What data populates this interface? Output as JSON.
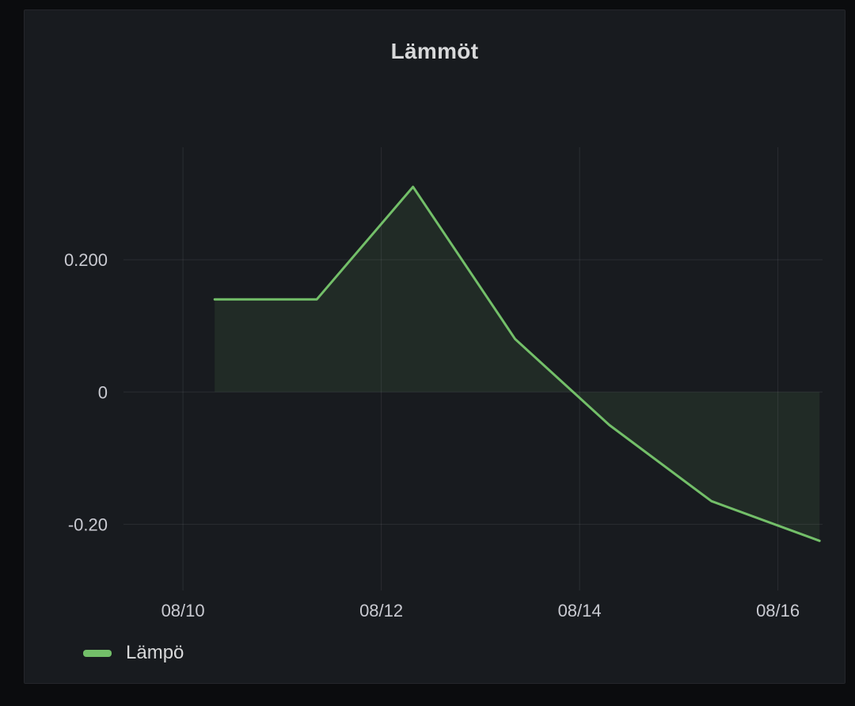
{
  "chart_data": {
    "type": "area",
    "title": "Lämmöt",
    "x_axis": {
      "min": 9.4,
      "max": 16.45,
      "ticks": [
        {
          "v": 10,
          "label": "08/10"
        },
        {
          "v": 12,
          "label": "08/12"
        },
        {
          "v": 14,
          "label": "08/14"
        },
        {
          "v": 16,
          "label": "08/16"
        }
      ]
    },
    "y_axis": {
      "min": -0.3,
      "max": 0.37,
      "ticks": [
        {
          "v": 0.2,
          "label": "0.200"
        },
        {
          "v": 0,
          "label": "0"
        },
        {
          "v": -0.2,
          "label": "-0.20"
        }
      ]
    },
    "grid": true,
    "series": [
      {
        "name": "Lämpö",
        "color": "#73BF69",
        "fill": "rgba(115,191,105,0.10)",
        "x": [
          10.32,
          11.35,
          12.32,
          13.35,
          14.3,
          15.33,
          16.42
        ],
        "y": [
          0.14,
          0.14,
          0.31,
          0.08,
          -0.05,
          -0.165,
          -0.225
        ]
      }
    ],
    "legend": {
      "position": "bottom-left",
      "items": [
        {
          "label": "Lämpö",
          "color": "#73BF69"
        }
      ]
    },
    "colors": {
      "page_bg": "#0b0c0e",
      "panel_bg": "#181b1f",
      "panel_border": "#25262b",
      "title_text": "#d8d9da",
      "tick_text": "#c9cad1",
      "grid": "rgba(204,204,220,0.10)",
      "line": "#73BF69"
    }
  }
}
